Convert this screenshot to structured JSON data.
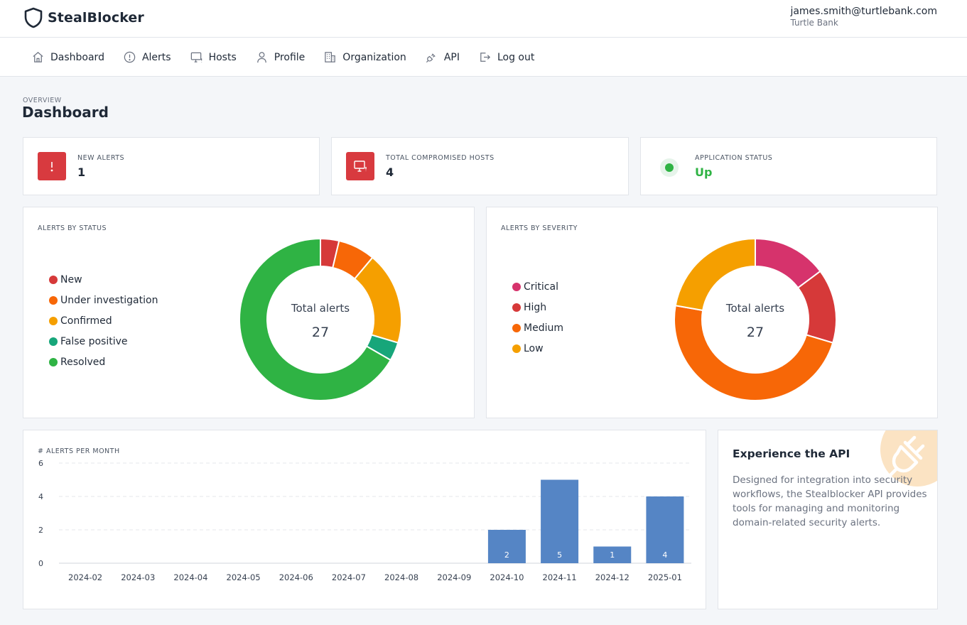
{
  "app": {
    "name": "StealBlocker"
  },
  "user": {
    "email": "james.smith@turtlebank.com",
    "organization": "Turtle Bank"
  },
  "nav": [
    {
      "label": "Dashboard",
      "icon": "home-icon"
    },
    {
      "label": "Alerts",
      "icon": "alert-circle-icon"
    },
    {
      "label": "Hosts",
      "icon": "monitor-icon"
    },
    {
      "label": "Profile",
      "icon": "user-icon"
    },
    {
      "label": "Organization",
      "icon": "building-icon"
    },
    {
      "label": "API",
      "icon": "plug-icon"
    },
    {
      "label": "Log out",
      "icon": "logout-icon"
    }
  ],
  "page": {
    "overline": "OVERVIEW",
    "title": "Dashboard"
  },
  "stats": {
    "new_alerts": {
      "label": "NEW ALERTS",
      "value": "1"
    },
    "compromised_hosts": {
      "label": "TOTAL COMPROMISED HOSTS",
      "value": "4"
    },
    "app_status": {
      "label": "APPLICATION STATUS",
      "value": "Up"
    }
  },
  "colors": {
    "new": "#d63939",
    "under_investigation": "#f76707",
    "confirmed": "#f59f00",
    "false_positive": "#17a67a",
    "resolved": "#2fb344",
    "critical": "#d6336c",
    "high": "#d63939",
    "medium": "#f76707",
    "low": "#f59f00",
    "bar": "#5585c5"
  },
  "chart_data": [
    {
      "type": "pie",
      "title": "ALERTS BY STATUS",
      "center_label": "Total alerts",
      "total": "27",
      "slices": [
        {
          "name": "New",
          "value": 1,
          "color": "#d63939"
        },
        {
          "name": "Under investigation",
          "value": 2,
          "color": "#f76707"
        },
        {
          "name": "Confirmed",
          "value": 5,
          "color": "#f59f00"
        },
        {
          "name": "False positive",
          "value": 1,
          "color": "#17a67a"
        },
        {
          "name": "Resolved",
          "value": 18,
          "color": "#2fb344"
        }
      ]
    },
    {
      "type": "pie",
      "title": "ALERTS BY SEVERITY",
      "center_label": "Total alerts",
      "total": "27",
      "slices": [
        {
          "name": "Critical",
          "value": 4,
          "color": "#d6336c"
        },
        {
          "name": "High",
          "value": 4,
          "color": "#d63939"
        },
        {
          "name": "Medium",
          "value": 13,
          "color": "#f76707"
        },
        {
          "name": "Low",
          "value": 6,
          "color": "#f59f00"
        }
      ]
    },
    {
      "type": "bar",
      "title": "# ALERTS PER MONTH",
      "categories": [
        "2024-02",
        "2024-03",
        "2024-04",
        "2024-05",
        "2024-06",
        "2024-07",
        "2024-08",
        "2024-09",
        "2024-10",
        "2024-11",
        "2024-12",
        "2025-01"
      ],
      "values": [
        0,
        0,
        0,
        0,
        0,
        0,
        0,
        0,
        2,
        5,
        1,
        4
      ],
      "ylim": [
        0,
        6
      ],
      "yticks": [
        0,
        2,
        4,
        6
      ],
      "grid": true
    }
  ],
  "api_card": {
    "title": "Experience the API",
    "text": "Designed for integration into security workflows, the Stealblocker API provides tools for managing and monitoring domain-related security alerts."
  }
}
